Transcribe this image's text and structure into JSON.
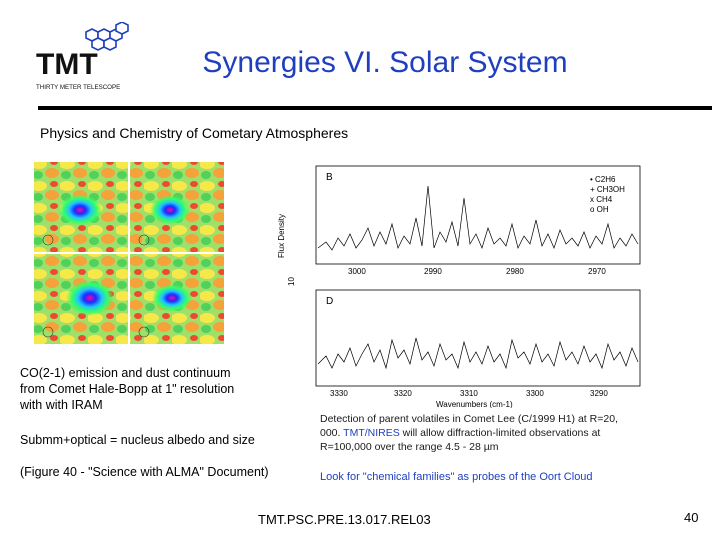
{
  "logo": {
    "name": "TMT",
    "tagline": "THIRTY METER TELESCOPE"
  },
  "title": "Synergies VI. Solar System",
  "subtitle": "Physics and Chemistry of Cometary Atmospheres",
  "figure_left": {
    "caption_lines": [
      "CO(2-1) emission and dust continuum",
      "from Comet Hale-Bopp at 1\" resolution",
      "with with IRAM"
    ],
    "note1": "Submm+optical = nucleus albedo and size",
    "note2": "(Figure 40 - \"Science with ALMA\" Document)"
  },
  "spectrum": {
    "panel_b_label": "B",
    "panel_d_label": "D",
    "y_label_1": "Flux Density",
    "y_label_2": "10",
    "legend": [
      "• C2H6",
      "+ CH3OH",
      "x CH4",
      "o OH"
    ],
    "b_ticks": [
      "3000",
      "2990",
      "2980",
      "2970"
    ],
    "d_ticks": [
      "3330",
      "3320",
      "3310",
      "3300",
      "3290"
    ],
    "x_label": "Wavenumbers (cm-1)"
  },
  "detection": {
    "line1": "Detection of parent volatiles in Comet Lee (C/1999 H1) at R=20,",
    "line2_prefix": "000. ",
    "line2_highlight": "TMT/NIRES",
    "line2_suffix": " will allow diffraction-limited observations at",
    "line3": "R=100,000 over the range 4.5 - 28 µm"
  },
  "look_for": "Look for \"chemical families\" as probes of the Oort Cloud",
  "footer": "TMT.PSC.PRE.13.017.REL03",
  "page_number": "40"
}
